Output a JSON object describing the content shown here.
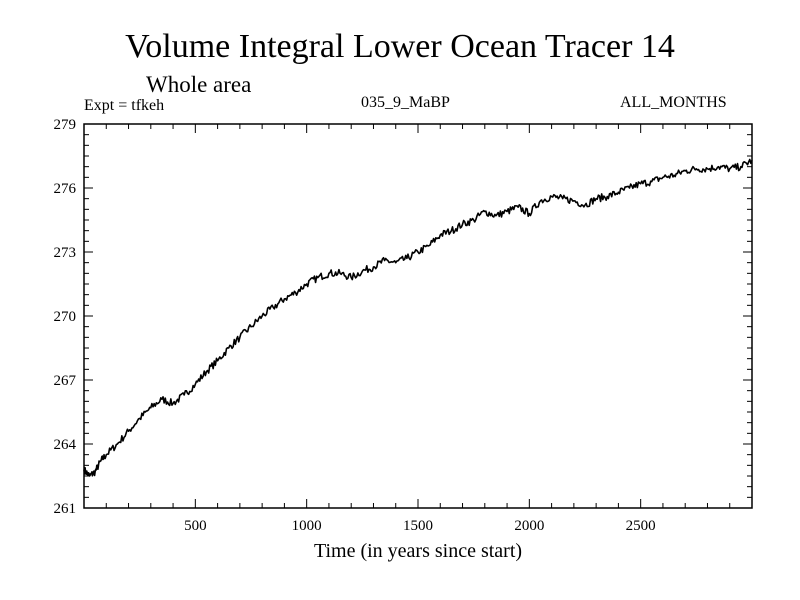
{
  "header": {
    "title": "Volume Integral Lower Ocean Tracer 14",
    "subtitle": "Whole area",
    "experiment": "Expt = tfkeh",
    "period": "035_9_MaBP",
    "months": "ALL_MONTHS"
  },
  "chart_data": {
    "type": "line",
    "title": "Volume Integral Lower Ocean Tracer 14",
    "subtitle": "Whole area",
    "xlabel": "Time (in years since start)",
    "ylabel": "",
    "xlim": [
      0,
      3000
    ],
    "ylim": [
      261,
      279
    ],
    "x_ticks": [
      500,
      1000,
      1500,
      2000,
      2500
    ],
    "x_tick_labels": [
      "500",
      "1000",
      "1500",
      "2000",
      "2500"
    ],
    "y_ticks": [
      261,
      264,
      267,
      270,
      273,
      276,
      279
    ],
    "y_tick_labels": [
      "261",
      "264",
      "267",
      "270",
      "273",
      "276",
      "279"
    ],
    "grid": false,
    "series": [
      {
        "color": "#000000",
        "x": [
          0,
          25,
          50,
          75,
          100,
          150,
          200,
          250,
          300,
          350,
          400,
          450,
          500,
          550,
          600,
          650,
          700,
          750,
          800,
          850,
          900,
          950,
          1000,
          1050,
          1100,
          1150,
          1200,
          1250,
          1300,
          1350,
          1400,
          1450,
          1500,
          1550,
          1600,
          1650,
          1700,
          1750,
          1800,
          1850,
          1900,
          1950,
          2000,
          2050,
          2100,
          2150,
          2200,
          2250,
          2300,
          2350,
          2400,
          2450,
          2500,
          2550,
          2600,
          2650,
          2700,
          2750,
          2800,
          2850,
          2900,
          2950,
          3000
        ],
        "y": [
          262.8,
          262.5,
          262.7,
          263.2,
          263.5,
          264.0,
          264.6,
          265.2,
          265.7,
          266.1,
          265.9,
          266.3,
          266.8,
          267.4,
          267.9,
          268.5,
          269.0,
          269.5,
          270.0,
          270.4,
          270.8,
          271.1,
          271.5,
          271.8,
          272.0,
          272.0,
          271.8,
          272.1,
          272.3,
          272.6,
          272.5,
          272.7,
          273.0,
          273.3,
          273.8,
          274.0,
          274.3,
          274.5,
          274.9,
          274.7,
          274.9,
          275.1,
          274.8,
          275.4,
          275.6,
          275.5,
          275.4,
          275.2,
          275.5,
          275.6,
          275.8,
          276.0,
          276.2,
          276.3,
          276.5,
          276.6,
          276.8,
          276.9,
          276.9,
          277.0,
          276.9,
          277.0,
          277.3
        ]
      }
    ]
  }
}
